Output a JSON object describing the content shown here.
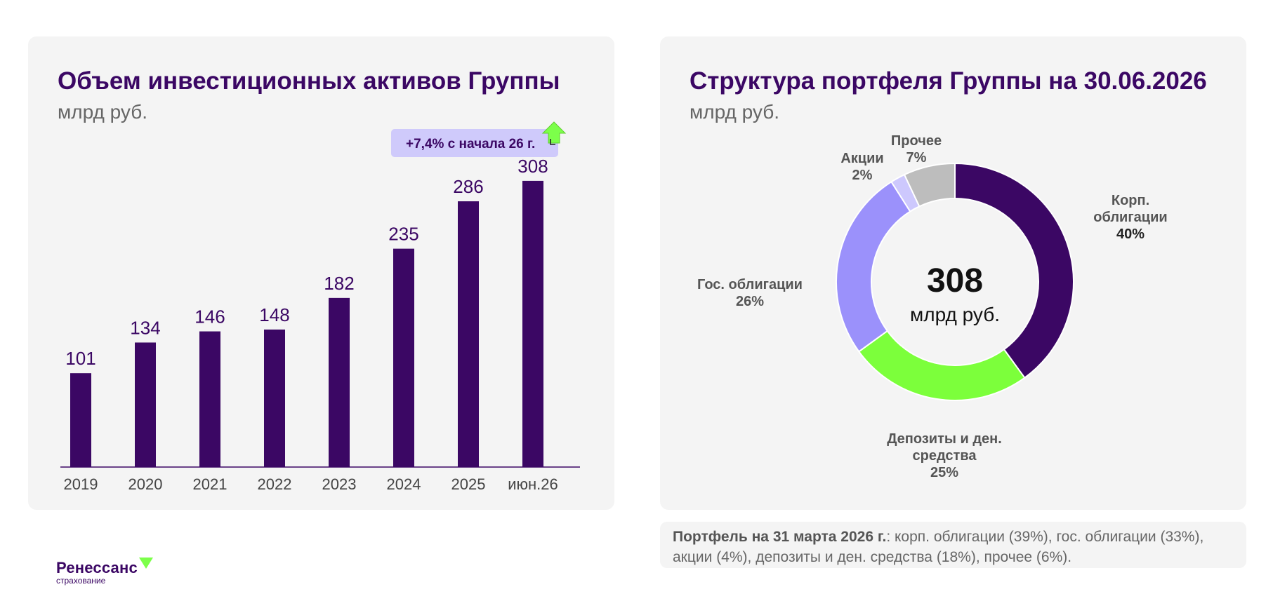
{
  "colors": {
    "accent": "#3b0764",
    "lavender": "#9b91fb",
    "light_lavender": "#cdc8fd",
    "green": "#7cff3b",
    "gray": "#bdbdbd",
    "badge_bg": "#cfcafb"
  },
  "chart_data": [
    {
      "type": "bar",
      "title": "Объем инвестиционных активов Группы",
      "subtitle": "млрд руб.",
      "categories": [
        "2019",
        "2020",
        "2021",
        "2022",
        "2023",
        "2024",
        "2025",
        "июн.26"
      ],
      "values": [
        101,
        134,
        146,
        148,
        182,
        235,
        286,
        308
      ],
      "ylim": [
        0,
        320
      ],
      "badge": "+7,4% с начала 26 г.",
      "badge_icon": "up-arrow-icon",
      "grid": false
    },
    {
      "type": "pie",
      "title": "Структура портфеля Группы на 30.06.2026",
      "subtitle": "млрд руб.",
      "center_value": "308",
      "center_unit": "млрд руб.",
      "slices": [
        {
          "name": "Корп. облигации",
          "value": 40,
          "label": "40%",
          "color": "#3b0764"
        },
        {
          "name": "Депозиты и ден. средства",
          "value": 25,
          "label": "25%",
          "color": "#7cff3b"
        },
        {
          "name": "Гос. облигации",
          "value": 26,
          "label": "26%",
          "color": "#9b91fb"
        },
        {
          "name": "Акции",
          "value": 2,
          "label": "2%",
          "color": "#cdc8fd"
        },
        {
          "name": "Прочее",
          "value": 7,
          "label": "7%",
          "color": "#bdbdbd"
        }
      ]
    }
  ],
  "note": {
    "bold": "Портфель на 31 марта 2026 г.",
    "text": ": корп. облигации (39%), гос. облигации (33%), акции (4%), депозиты и ден. средства (18%), прочее (6%)."
  },
  "logo": {
    "word": "Ренессанс",
    "sub": "страхование"
  }
}
